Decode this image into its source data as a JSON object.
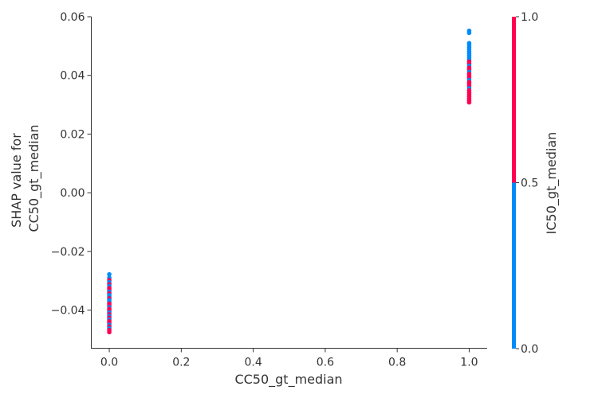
{
  "chart_data": {
    "type": "scatter",
    "title": "",
    "xlabel": "CC50_gt_median",
    "ylabel_lines": [
      "SHAP value for",
      "CC50_gt_median"
    ],
    "xlim": [
      -0.05,
      1.05
    ],
    "ylim": [
      -0.053,
      0.06
    ],
    "x_ticks": [
      0.0,
      0.2,
      0.4,
      0.6,
      0.8,
      1.0
    ],
    "x_tick_labels": [
      "0.0",
      "0.2",
      "0.4",
      "0.6",
      "0.8",
      "1.0"
    ],
    "y_ticks": [
      0.06,
      0.04,
      0.02,
      0.0,
      -0.02,
      -0.04
    ],
    "y_tick_labels": [
      "0.06",
      "0.04",
      "0.02",
      "0.00",
      "−0.02",
      "−0.04"
    ],
    "grid": false,
    "colorbar": {
      "label": "IC50_gt_median",
      "ticks": [
        0.0,
        0.5,
        1.0
      ],
      "tick_labels": [
        "0.0",
        "0.5",
        "1.0"
      ],
      "low_color": "#008bfb",
      "high_color": "#ff0052"
    },
    "points": [
      {
        "x": 0,
        "y": -0.0278,
        "c": 0
      },
      {
        "x": 0,
        "y": -0.029,
        "c": 0
      },
      {
        "x": 0,
        "y": -0.0298,
        "c": 1
      },
      {
        "x": 0,
        "y": -0.0305,
        "c": 0
      },
      {
        "x": 0,
        "y": -0.0312,
        "c": 1
      },
      {
        "x": 0,
        "y": -0.0318,
        "c": 0
      },
      {
        "x": 0,
        "y": -0.0325,
        "c": 1
      },
      {
        "x": 0,
        "y": -0.0331,
        "c": 1
      },
      {
        "x": 0,
        "y": -0.0337,
        "c": 0
      },
      {
        "x": 0,
        "y": -0.0343,
        "c": 1
      },
      {
        "x": 0,
        "y": -0.0349,
        "c": 0
      },
      {
        "x": 0,
        "y": -0.0355,
        "c": 0
      },
      {
        "x": 0,
        "y": -0.036,
        "c": 1
      },
      {
        "x": 0,
        "y": -0.0366,
        "c": 0
      },
      {
        "x": 0,
        "y": -0.0372,
        "c": 0
      },
      {
        "x": 0,
        "y": -0.0378,
        "c": 1
      },
      {
        "x": 0,
        "y": -0.0384,
        "c": 1
      },
      {
        "x": 0,
        "y": -0.039,
        "c": 0
      },
      {
        "x": 0,
        "y": -0.0396,
        "c": 1
      },
      {
        "x": 0,
        "y": -0.0402,
        "c": 1
      },
      {
        "x": 0,
        "y": -0.0408,
        "c": 0
      },
      {
        "x": 0,
        "y": -0.0414,
        "c": 1
      },
      {
        "x": 0,
        "y": -0.042,
        "c": 0
      },
      {
        "x": 0,
        "y": -0.0426,
        "c": 1
      },
      {
        "x": 0,
        "y": -0.0432,
        "c": 0
      },
      {
        "x": 0,
        "y": -0.0438,
        "c": 1
      },
      {
        "x": 0,
        "y": -0.0444,
        "c": 1
      },
      {
        "x": 0,
        "y": -0.045,
        "c": 0
      },
      {
        "x": 0,
        "y": -0.0456,
        "c": 1
      },
      {
        "x": 0,
        "y": -0.0462,
        "c": 0
      },
      {
        "x": 0,
        "y": -0.0468,
        "c": 1
      },
      {
        "x": 0,
        "y": -0.0475,
        "c": 1
      },
      {
        "x": 1,
        "y": 0.0552,
        "c": 0
      },
      {
        "x": 1,
        "y": 0.0545,
        "c": 0
      },
      {
        "x": 1,
        "y": 0.051,
        "c": 0
      },
      {
        "x": 1,
        "y": 0.0503,
        "c": 0
      },
      {
        "x": 1,
        "y": 0.0496,
        "c": 0
      },
      {
        "x": 1,
        "y": 0.0489,
        "c": 0
      },
      {
        "x": 1,
        "y": 0.0482,
        "c": 0
      },
      {
        "x": 1,
        "y": 0.0475,
        "c": 0
      },
      {
        "x": 1,
        "y": 0.0468,
        "c": 0
      },
      {
        "x": 1,
        "y": 0.0461,
        "c": 0
      },
      {
        "x": 1,
        "y": 0.0454,
        "c": 0
      },
      {
        "x": 1,
        "y": 0.0447,
        "c": 1
      },
      {
        "x": 1,
        "y": 0.044,
        "c": 1
      },
      {
        "x": 1,
        "y": 0.0433,
        "c": 0
      },
      {
        "x": 1,
        "y": 0.0426,
        "c": 1
      },
      {
        "x": 1,
        "y": 0.0419,
        "c": 1
      },
      {
        "x": 1,
        "y": 0.0412,
        "c": 0
      },
      {
        "x": 1,
        "y": 0.0405,
        "c": 1
      },
      {
        "x": 1,
        "y": 0.0398,
        "c": 1
      },
      {
        "x": 1,
        "y": 0.0391,
        "c": 1
      },
      {
        "x": 1,
        "y": 0.0384,
        "c": 0
      },
      {
        "x": 1,
        "y": 0.0377,
        "c": 1
      },
      {
        "x": 1,
        "y": 0.037,
        "c": 1
      },
      {
        "x": 1,
        "y": 0.0363,
        "c": 1
      },
      {
        "x": 1,
        "y": 0.0356,
        "c": 0
      },
      {
        "x": 1,
        "y": 0.0349,
        "c": 1
      },
      {
        "x": 1,
        "y": 0.0342,
        "c": 1
      },
      {
        "x": 1,
        "y": 0.0335,
        "c": 1
      },
      {
        "x": 1,
        "y": 0.0328,
        "c": 1
      },
      {
        "x": 1,
        "y": 0.0321,
        "c": 1
      },
      {
        "x": 1,
        "y": 0.0314,
        "c": 1
      },
      {
        "x": 1,
        "y": 0.0308,
        "c": 1
      }
    ]
  }
}
